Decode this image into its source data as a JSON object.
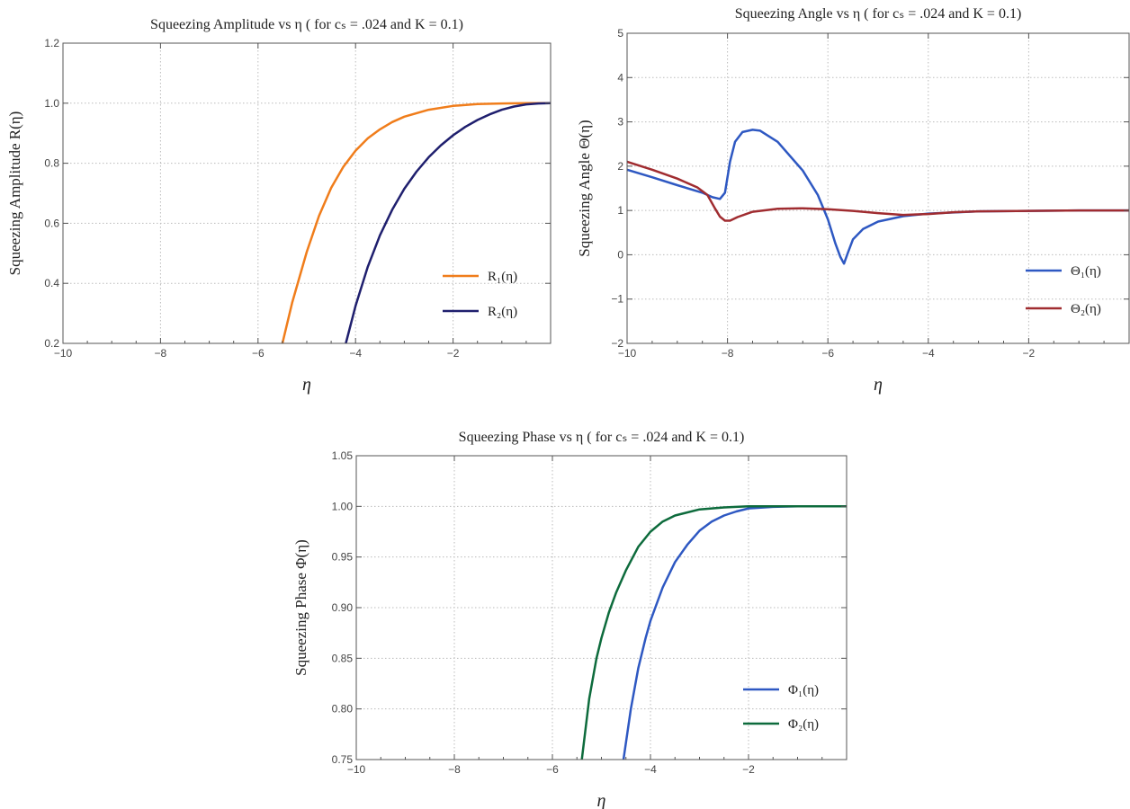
{
  "chart_data": [
    {
      "type": "line",
      "title": "Squeezing Amplitude vs η ( for cₛ = .024 and K = 0.1)",
      "xlabel": "η",
      "ylabel": "Squeezing Amplitude R(η)",
      "xlim": [
        -10,
        0
      ],
      "ylim": [
        0.2,
        1.2
      ],
      "xticks": [
        -10,
        -8,
        -6,
        -4,
        -2
      ],
      "xtick_labels": [
        "−10",
        "−8",
        "−6",
        "−4",
        "−2"
      ],
      "yticks": [
        0.2,
        0.4,
        0.6,
        0.8,
        1.0,
        1.2
      ],
      "ytick_labels": [
        "0.2",
        "0.4",
        "0.6",
        "0.8",
        "1.0",
        "1.2"
      ],
      "grid": true,
      "legend": "bottom-right",
      "series": [
        {
          "name": "R₁(η)",
          "color": "#f07d1b",
          "x": [
            -5.5,
            -5.3,
            -5.0,
            -4.75,
            -4.5,
            -4.25,
            -4.0,
            -3.75,
            -3.5,
            -3.25,
            -3.0,
            -2.5,
            -2.0,
            -1.5,
            -1.0,
            -0.5,
            0.0
          ],
          "y": [
            0.2,
            0.335,
            0.505,
            0.625,
            0.718,
            0.788,
            0.842,
            0.883,
            0.913,
            0.937,
            0.955,
            0.978,
            0.991,
            0.997,
            0.999,
            1.0,
            1.0
          ]
        },
        {
          "name": "R₂(η)",
          "color": "#1f1f6e",
          "x": [
            -4.2,
            -4.0,
            -3.75,
            -3.5,
            -3.25,
            -3.0,
            -2.75,
            -2.5,
            -2.25,
            -2.0,
            -1.75,
            -1.5,
            -1.25,
            -1.0,
            -0.75,
            -0.5,
            -0.25,
            0.0
          ],
          "y": [
            0.2,
            0.325,
            0.455,
            0.56,
            0.645,
            0.715,
            0.772,
            0.82,
            0.86,
            0.893,
            0.921,
            0.944,
            0.963,
            0.978,
            0.989,
            0.996,
            0.999,
            1.0
          ]
        }
      ]
    },
    {
      "type": "line",
      "title": "Squeezing Angle vs η ( for cₛ = .024 and K = 0.1)",
      "xlabel": "η",
      "ylabel": "Squeezing Angle Θ(η)",
      "xlim": [
        -10,
        0
      ],
      "ylim": [
        -2,
        5
      ],
      "xticks": [
        -10,
        -8,
        -6,
        -4,
        -2
      ],
      "xtick_labels": [
        "−10",
        "−8",
        "−6",
        "−4",
        "−2"
      ],
      "yticks": [
        -2,
        -1,
        0,
        1,
        2,
        3,
        4,
        5
      ],
      "ytick_labels": [
        "−2",
        "−1",
        "0",
        "1",
        "2",
        "3",
        "4",
        "5"
      ],
      "grid": true,
      "legend": "bottom-right",
      "series": [
        {
          "name": "Θ₁(η)",
          "color": "#2e58c2",
          "x": [
            -10.0,
            -9.5,
            -9.0,
            -8.5,
            -8.3,
            -8.15,
            -8.05,
            -7.95,
            -7.85,
            -7.7,
            -7.5,
            -7.35,
            -7.0,
            -6.5,
            -6.2,
            -6.0,
            -5.85,
            -5.75,
            -5.68,
            -5.6,
            -5.5,
            -5.3,
            -5.0,
            -4.5,
            -4.0,
            -3.0,
            -2.0,
            -1.0,
            0.0
          ],
          "y": [
            1.92,
            1.75,
            1.57,
            1.4,
            1.3,
            1.26,
            1.4,
            2.1,
            2.55,
            2.77,
            2.82,
            2.8,
            2.55,
            1.9,
            1.35,
            0.8,
            0.25,
            -0.05,
            -0.2,
            0.05,
            0.35,
            0.58,
            0.75,
            0.87,
            0.93,
            0.98,
            0.99,
            1.0,
            1.0
          ]
        },
        {
          "name": "Θ₂(η)",
          "color": "#a02c30",
          "x": [
            -10.0,
            -9.5,
            -9.0,
            -8.6,
            -8.4,
            -8.25,
            -8.15,
            -8.05,
            -7.95,
            -7.8,
            -7.5,
            -7.0,
            -6.5,
            -6.0,
            -5.5,
            -5.0,
            -4.5,
            -4.0,
            -3.5,
            -3.0,
            -2.0,
            -1.0,
            0.0
          ],
          "y": [
            2.1,
            1.92,
            1.72,
            1.52,
            1.35,
            1.05,
            0.86,
            0.77,
            0.77,
            0.85,
            0.97,
            1.04,
            1.05,
            1.03,
            0.99,
            0.94,
            0.9,
            0.92,
            0.96,
            0.98,
            0.99,
            1.0,
            1.0
          ]
        }
      ]
    },
    {
      "type": "line",
      "title": "Squeezing Phase vs η ( for cₛ = .024 and K = 0.1)",
      "xlabel": "η",
      "ylabel": "Squeezing Phase Φ(η)",
      "xlim": [
        -10,
        0
      ],
      "ylim": [
        0.75,
        1.05
      ],
      "xticks": [
        -10,
        -8,
        -6,
        -4,
        -2
      ],
      "xtick_labels": [
        "−10",
        "−8",
        "−6",
        "−4",
        "−2"
      ],
      "yticks": [
        0.75,
        0.8,
        0.85,
        0.9,
        0.95,
        1.0,
        1.05
      ],
      "ytick_labels": [
        "0.75",
        "0.80",
        "0.85",
        "0.90",
        "0.95",
        "1.00",
        "1.05"
      ],
      "grid": true,
      "legend": "bottom-right",
      "series": [
        {
          "name": "Φ₁(η)",
          "color": "#2e58c2",
          "x": [
            -4.55,
            -4.4,
            -4.25,
            -4.1,
            -4.0,
            -3.75,
            -3.5,
            -3.25,
            -3.0,
            -2.75,
            -2.5,
            -2.25,
            -2.0,
            -1.5,
            -1.0,
            0.0
          ],
          "y": [
            0.75,
            0.8,
            0.84,
            0.87,
            0.887,
            0.92,
            0.945,
            0.962,
            0.976,
            0.985,
            0.991,
            0.995,
            0.998,
            0.9995,
            1.0,
            1.0
          ]
        },
        {
          "name": "Φ₂(η)",
          "color": "#0d6b3c",
          "x": [
            -5.4,
            -5.25,
            -5.1,
            -5.0,
            -4.85,
            -4.7,
            -4.5,
            -4.25,
            -4.0,
            -3.75,
            -3.5,
            -3.0,
            -2.5,
            -2.0,
            -1.0,
            0.0
          ],
          "y": [
            0.75,
            0.81,
            0.85,
            0.87,
            0.895,
            0.915,
            0.937,
            0.96,
            0.975,
            0.985,
            0.991,
            0.997,
            0.999,
            1.0,
            1.0,
            1.0
          ]
        }
      ]
    }
  ]
}
